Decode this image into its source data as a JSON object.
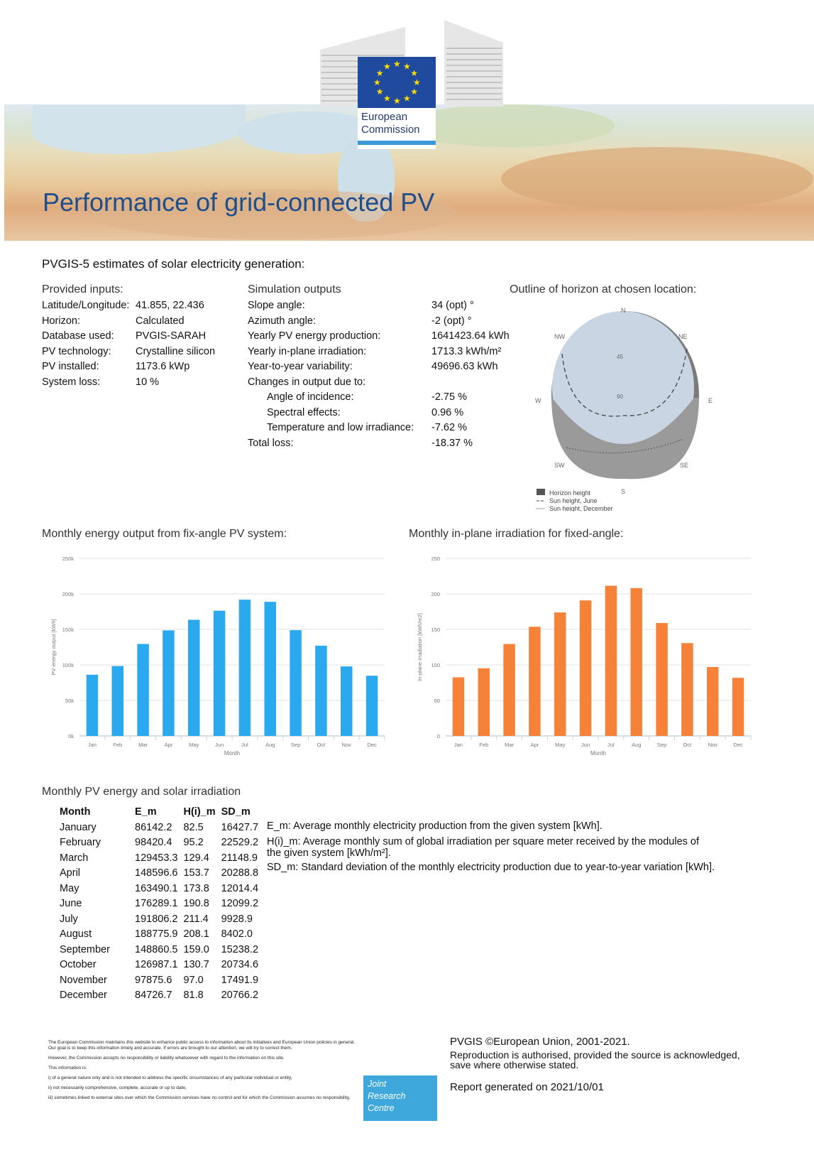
{
  "header": {
    "logo_text_line1": "European",
    "logo_text_line2": "Commission",
    "title": "Performance of grid-connected PV"
  },
  "subtitle": "PVGIS-5 estimates of solar electricity generation:",
  "inputs": {
    "heading": "Provided inputs:",
    "rows": [
      {
        "label": "Latitude/Longitude:",
        "value": "41.855, 22.436"
      },
      {
        "label": "Horizon:",
        "value": "Calculated"
      },
      {
        "label": "Database used:",
        "value": "PVGIS-SARAH"
      },
      {
        "label": "PV technology:",
        "value": "Crystalline silicon"
      },
      {
        "label": "PV installed:",
        "value": "1173.6 kWp"
      },
      {
        "label": "System loss:",
        "value": "10 %"
      }
    ]
  },
  "outputs": {
    "heading": "Simulation outputs",
    "rows": [
      {
        "label": "Slope angle:",
        "value": "34 (opt) °"
      },
      {
        "label": "Azimuth angle:",
        "value": "-2 (opt) °"
      },
      {
        "label": "Yearly PV energy production:",
        "value": "1641423.64 kWh"
      },
      {
        "label": "Yearly in-plane irradiation:",
        "value": "1713.3 kWh/m²"
      },
      {
        "label": "Year-to-year variability:",
        "value": "49696.63 kWh"
      },
      {
        "label": "Changes in output due to:",
        "value": ""
      },
      {
        "label": "Angle of incidence:",
        "value": "-2.75 %"
      },
      {
        "label": "Spectral effects:",
        "value": "0.96 %"
      },
      {
        "label": "Temperature and low irradiance:",
        "value": "-7.62 %"
      },
      {
        "label": "Total loss:",
        "value": "-18.37 %"
      }
    ]
  },
  "horizon": {
    "heading": "Outline of horizon at chosen location:",
    "directions": {
      "n": "N",
      "ne": "NE",
      "e": "E",
      "se": "SE",
      "s": "S",
      "sw": "SW",
      "w": "W",
      "nw": "NW"
    },
    "ring_labels": [
      "45",
      "90"
    ],
    "legend": [
      "Horizon height",
      "Sun height, June",
      "Sun height, December"
    ]
  },
  "chart_data": [
    {
      "type": "bar",
      "title": "Monthly energy output from fix-angle PV system:",
      "xlabel": "Month",
      "ylabel": "PV energy output [kWh]",
      "categories": [
        "Jan",
        "Feb",
        "Mar",
        "Apr",
        "May",
        "Jun",
        "Jul",
        "Aug",
        "Sep",
        "Oct",
        "Nov",
        "Dec"
      ],
      "values": [
        86142.2,
        98420.4,
        129453.3,
        148596.6,
        163490.1,
        176289.1,
        191806.2,
        188775.9,
        148860.5,
        126987.1,
        97875.6,
        84726.7
      ],
      "ylim": [
        0,
        250000
      ],
      "ticks": [
        "0k",
        "50k",
        "100k",
        "150k",
        "200k",
        "250k"
      ],
      "color": "#2aa9ee"
    },
    {
      "type": "bar",
      "title": "Monthly in-plane irradiation for fixed-angle:",
      "xlabel": "Month",
      "ylabel": "In-plane irradiation [kWh/m2]",
      "categories": [
        "Jan",
        "Feb",
        "Mar",
        "Apr",
        "May",
        "Jun",
        "Jul",
        "Aug",
        "Sep",
        "Oct",
        "Nov",
        "Dec"
      ],
      "values": [
        82.5,
        95.2,
        129.4,
        153.7,
        173.8,
        190.8,
        211.4,
        208.1,
        159.0,
        130.7,
        97.0,
        81.8
      ],
      "ylim": [
        0,
        250
      ],
      "ticks": [
        "0",
        "50",
        "100",
        "150",
        "200",
        "250"
      ],
      "color": "#f6823a"
    }
  ],
  "table": {
    "heading": "Monthly PV energy and solar irradiation",
    "columns": [
      "Month",
      "E_m",
      "H(i)_m",
      "SD_m"
    ],
    "rows": [
      [
        "January",
        "86142.2",
        "82.5",
        "16427.7"
      ],
      [
        "February",
        "98420.4",
        "95.2",
        "22529.2"
      ],
      [
        "March",
        "129453.3",
        "129.4",
        "21148.9"
      ],
      [
        "April",
        "148596.6",
        "153.7",
        "20288.8"
      ],
      [
        "May",
        "163490.1",
        "173.8",
        "12014.4"
      ],
      [
        "June",
        "176289.1",
        "190.8",
        "12099.2"
      ],
      [
        "July",
        "191806.2",
        "211.4",
        "9928.9"
      ],
      [
        "August",
        "188775.9",
        "208.1",
        "8402.0"
      ],
      [
        "September",
        "148860.5",
        "159.0",
        "15238.2"
      ],
      [
        "October",
        "126987.1",
        "130.7",
        "20734.6"
      ],
      [
        "November",
        "97875.6",
        "97.0",
        "17491.9"
      ],
      [
        "December",
        "84726.7",
        "81.8",
        "20766.2"
      ]
    ],
    "legend": [
      "E_m: Average monthly electricity production from the given system [kWh].",
      "H(i)_m: Average monthly sum of global irradiation per square meter received by the modules of the given system [kWh/m²].",
      "SD_m: Standard deviation of the monthly electricity production due to year-to-year variation [kWh]."
    ]
  },
  "footer": {
    "disclaimer": [
      "The European Commission maintains this website to enhance public access to information about its initiatives and European Union policies in general. Our goal is to keep this information timely and accurate. If errors are brought to our attention, we will try to correct them.",
      "However, the Commission accepts no responsibility or liability whatsoever with regard to the information on this site.",
      "This information is:",
      "i) of a general nature only and is not intended to address the specific circumstances of any particular individual or entity,",
      "ii) not necessarily comprehensive, complete, accurate or up to date,",
      "iii) sometimes linked to external sites over which the Commission services have no control and for which the Commission assumes no responsibility,"
    ],
    "jrc": [
      "Joint",
      "Research",
      "Centre"
    ],
    "copyright": "PVGIS ©European Union, 2001-2021.",
    "reproduction": "Reproduction is authorised, provided the source is acknowledged, save where otherwise stated.",
    "generated": "Report generated on 2021/10/01"
  }
}
